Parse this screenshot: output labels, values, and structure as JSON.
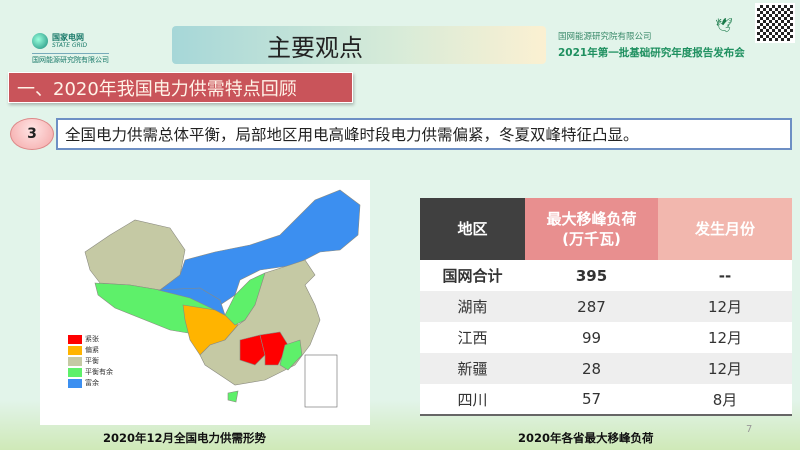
{
  "header": {
    "logo_cn": "国家电网",
    "logo_en": "STATE GRID",
    "logo_sub": "国网能源研究院有限公司",
    "title": "主要观点",
    "org": "国网能源研究院有限公司",
    "event": "2021年第一批基础研究年度报告发布会"
  },
  "section": {
    "title": "一、2020年我国电力供需特点回顾"
  },
  "point": {
    "number": "3",
    "text": "全国电力供需总体平衡，局部地区用电高峰时段电力供需偏紧，冬夏双峰特征凸显。"
  },
  "map": {
    "caption": "2020年12月全国电力供需形势",
    "legend": [
      {
        "label": "紧张",
        "color": "#ff0000"
      },
      {
        "label": "偏紧",
        "color": "#ffb400"
      },
      {
        "label": "平衡",
        "color": "#c5c9a4"
      },
      {
        "label": "平衡有余",
        "color": "#5ef06a"
      },
      {
        "label": "富余",
        "color": "#3c8ff0"
      }
    ]
  },
  "table": {
    "caption": "2020年各省最大移峰负荷",
    "headers": [
      "地区",
      "最大移峰负荷",
      "(万千瓦)",
      "发生月份"
    ],
    "header_colors": [
      "#404040",
      "#e88f8f",
      "#f2b7ae"
    ],
    "rows": [
      [
        "国网合计",
        "395",
        "--"
      ],
      [
        "湖南",
        "287",
        "12月"
      ],
      [
        "江西",
        "99",
        "12月"
      ],
      [
        "新疆",
        "28",
        "12月"
      ],
      [
        "四川",
        "57",
        "8月"
      ]
    ]
  },
  "page_number": "7"
}
